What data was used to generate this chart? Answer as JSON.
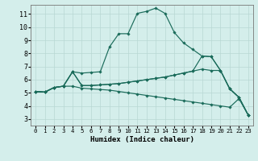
{
  "xlabel": "Humidex (Indice chaleur)",
  "xlim": [
    -0.5,
    23.5
  ],
  "ylim": [
    2.5,
    11.7
  ],
  "xticks": [
    0,
    1,
    2,
    3,
    4,
    5,
    6,
    7,
    8,
    9,
    10,
    11,
    12,
    13,
    14,
    15,
    16,
    17,
    18,
    19,
    20,
    21,
    22,
    23
  ],
  "yticks": [
    3,
    4,
    5,
    6,
    7,
    8,
    9,
    10,
    11
  ],
  "bg_color": "#d4eeeb",
  "grid_color": "#b8d8d4",
  "line_color": "#1a6b5a",
  "curves": [
    [
      5.1,
      5.05,
      5.4,
      5.5,
      6.6,
      6.5,
      6.55,
      6.6,
      8.5,
      9.5,
      9.5,
      11.05,
      11.2,
      11.45,
      11.05,
      9.6,
      8.8,
      8.3,
      7.8,
      7.75,
      6.7,
      5.3,
      4.65,
      3.3
    ],
    [
      5.1,
      5.05,
      5.4,
      5.5,
      6.6,
      5.55,
      5.55,
      5.6,
      5.65,
      5.7,
      5.8,
      5.9,
      6.0,
      6.1,
      6.2,
      6.35,
      6.5,
      6.65,
      7.8,
      7.75,
      6.7,
      5.3,
      4.65,
      3.3
    ],
    [
      5.1,
      5.05,
      5.4,
      5.5,
      6.6,
      5.55,
      5.55,
      5.6,
      5.65,
      5.7,
      5.8,
      5.9,
      6.0,
      6.1,
      6.2,
      6.35,
      6.5,
      6.65,
      6.8,
      6.7,
      6.7,
      5.3,
      4.65,
      3.3
    ],
    [
      5.1,
      5.05,
      5.4,
      5.5,
      5.5,
      5.35,
      5.3,
      5.25,
      5.2,
      5.1,
      5.0,
      4.9,
      4.8,
      4.7,
      4.6,
      4.5,
      4.4,
      4.3,
      4.2,
      4.1,
      4.0,
      3.9,
      4.55,
      3.3
    ]
  ]
}
